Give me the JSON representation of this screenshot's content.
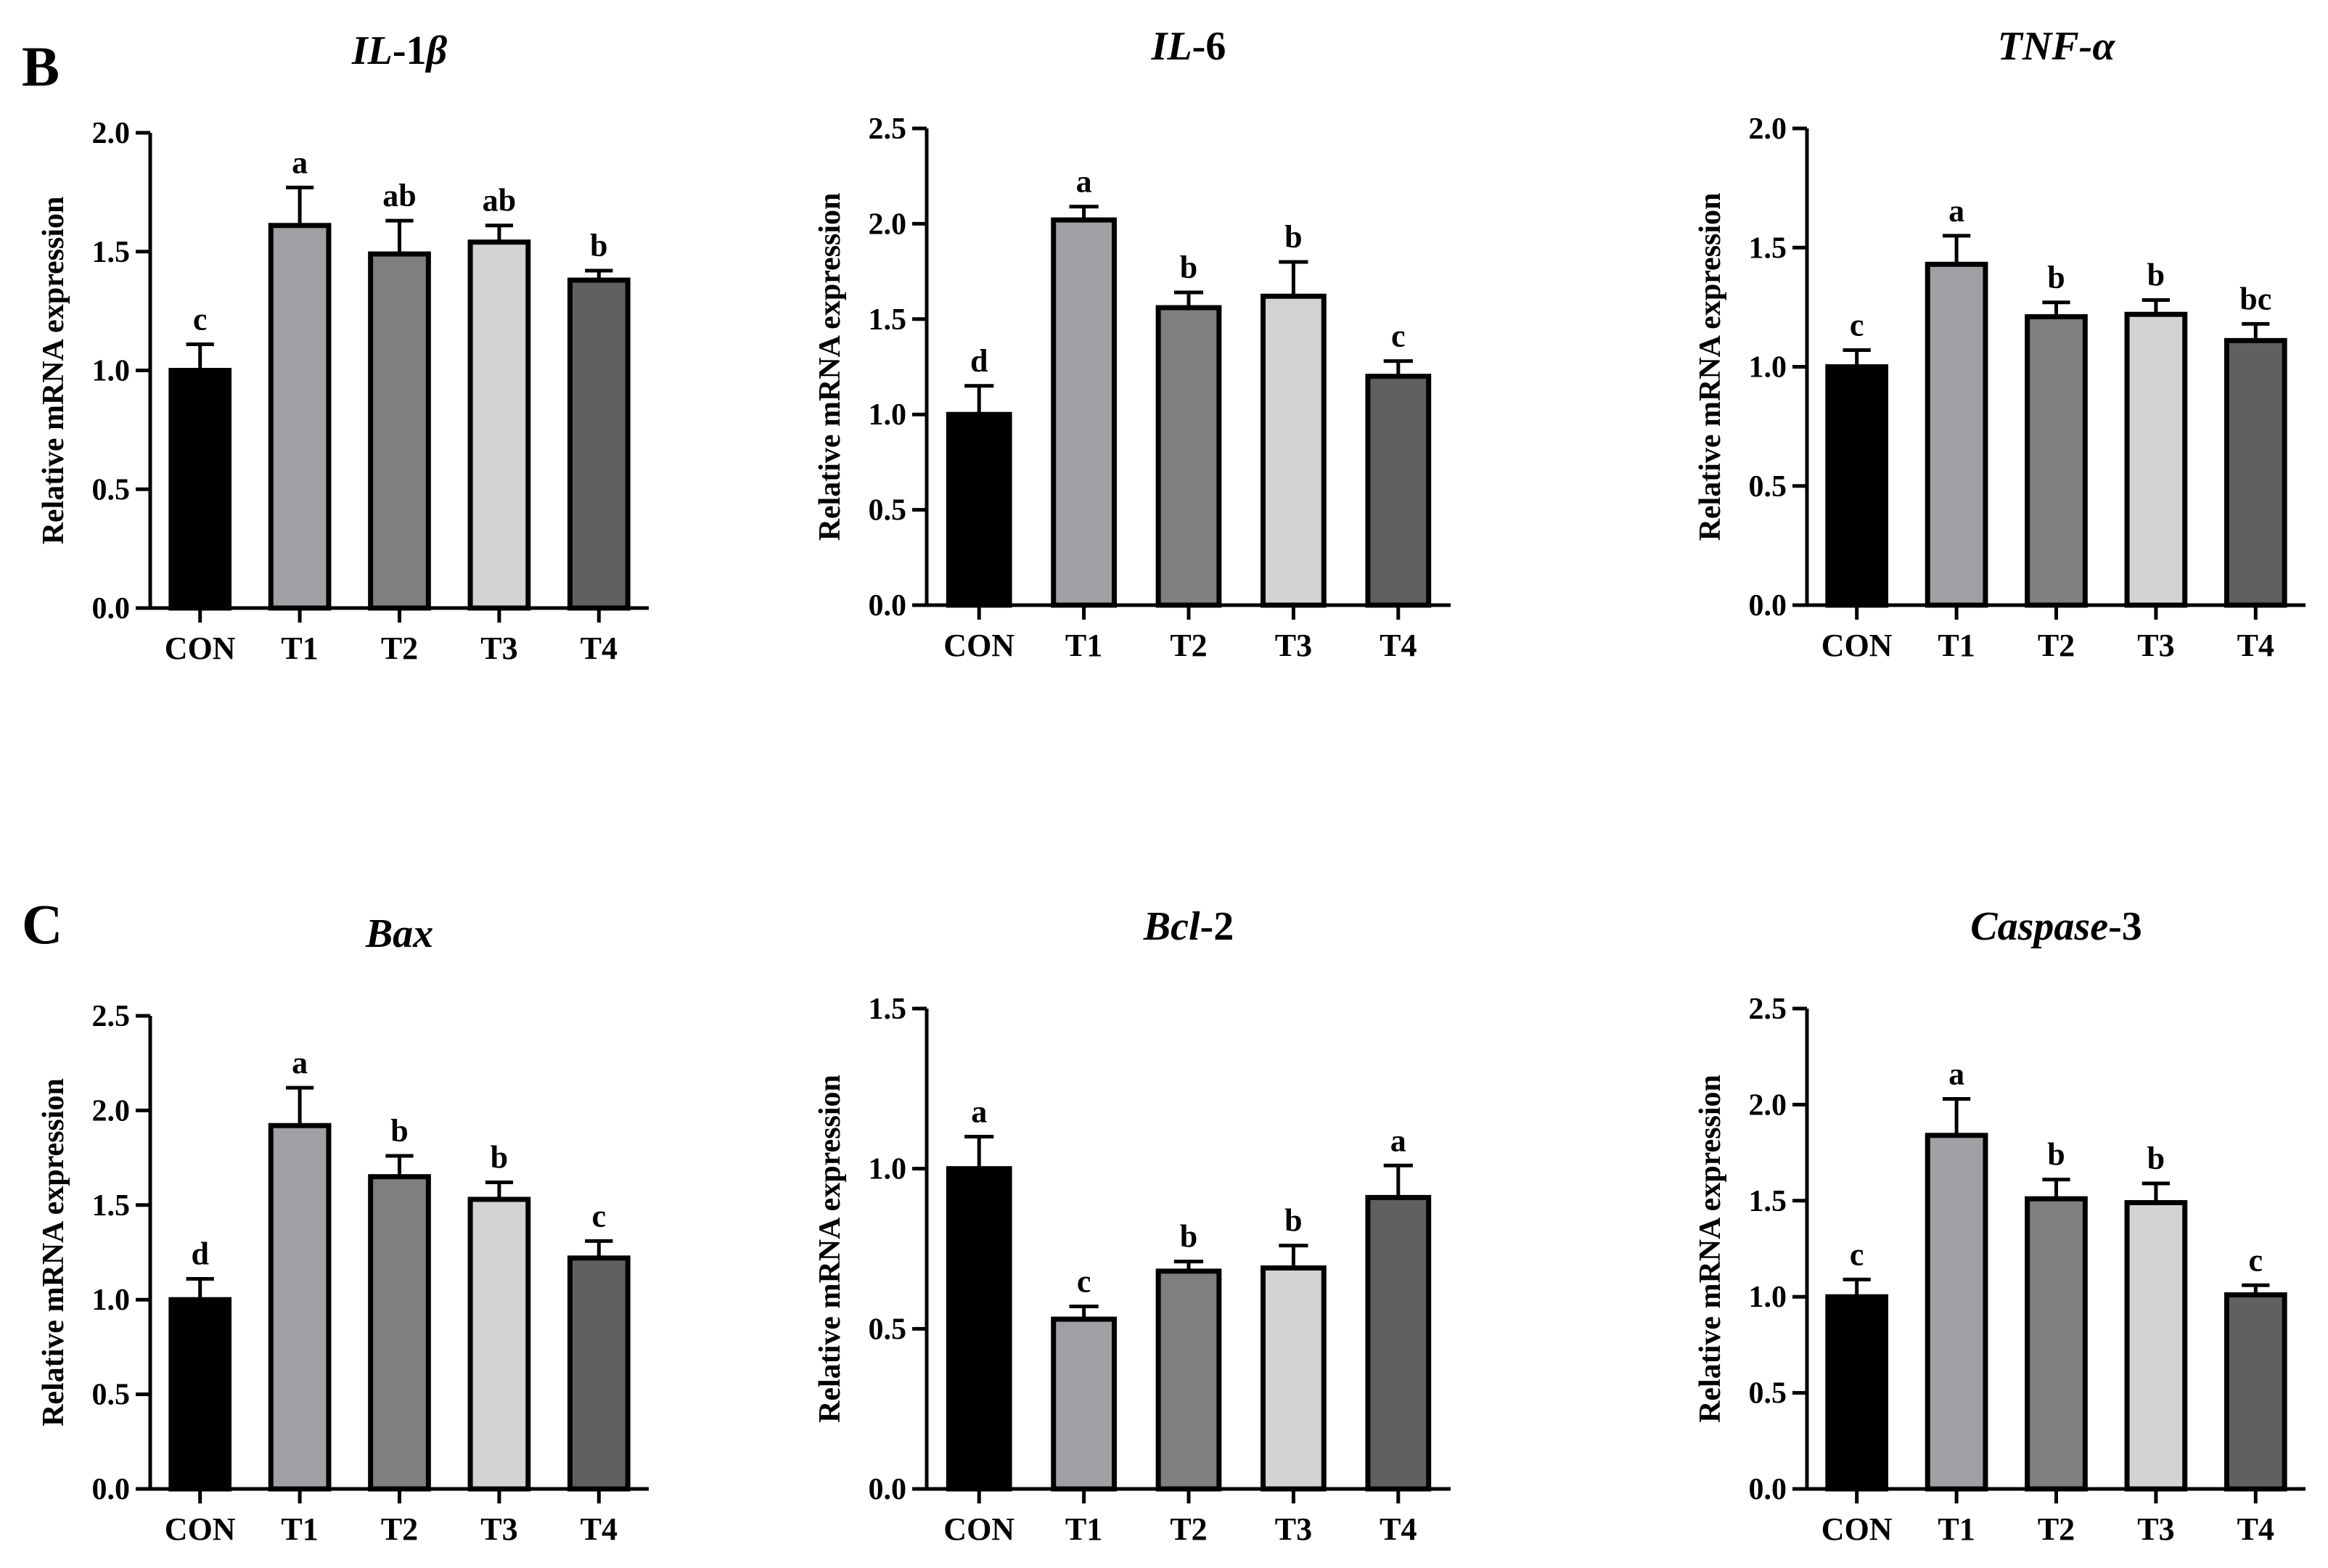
{
  "figure": {
    "panels": [
      {
        "letter": "B"
      },
      {
        "letter": "C"
      }
    ]
  },
  "chart_data": [
    {
      "type": "bar",
      "title": "IL-1β",
      "title_parts": [
        {
          "text": "IL",
          "italic": true
        },
        {
          "text": "-1",
          "italic": false
        },
        {
          "text": "β",
          "italic": true
        }
      ],
      "categories": [
        "CON",
        "T1",
        "T2",
        "T3",
        "T4"
      ],
      "values": [
        1.0,
        1.61,
        1.49,
        1.54,
        1.38
      ],
      "errors": [
        0.11,
        0.16,
        0.14,
        0.07,
        0.04
      ],
      "significance": [
        "c",
        "a",
        "ab",
        "ab",
        "b"
      ],
      "colors": [
        "#000000",
        "#a0a0a4",
        "#7f7f7f",
        "#d3d3d3",
        "#606060"
      ],
      "xlabel": "",
      "ylabel": "Relative mRNA expression",
      "ylim": [
        0,
        2.0
      ],
      "yticks": [
        "0.0",
        "0.5",
        "1.0",
        "1.5",
        "2.0"
      ]
    },
    {
      "type": "bar",
      "title": "IL-6",
      "title_parts": [
        {
          "text": "IL",
          "italic": true
        },
        {
          "text": "-6",
          "italic": false
        }
      ],
      "categories": [
        "CON",
        "T1",
        "T2",
        "T3",
        "T4"
      ],
      "values": [
        1.0,
        2.02,
        1.56,
        1.62,
        1.2
      ],
      "errors": [
        0.15,
        0.07,
        0.08,
        0.18,
        0.08
      ],
      "significance": [
        "d",
        "a",
        "b",
        "b",
        "c"
      ],
      "colors": [
        "#000000",
        "#a0a0a4",
        "#7f7f7f",
        "#d3d3d3",
        "#606060"
      ],
      "xlabel": "",
      "ylabel": "Relative mRNA expression",
      "ylim": [
        0,
        2.5
      ],
      "yticks": [
        "0.0",
        "0.5",
        "1.0",
        "1.5",
        "2.0",
        "2.5"
      ]
    },
    {
      "type": "bar",
      "title": "TNF-α",
      "title_parts": [
        {
          "text": "TNF-α",
          "italic": true
        }
      ],
      "categories": [
        "CON",
        "T1",
        "T2",
        "T3",
        "T4"
      ],
      "values": [
        1.0,
        1.43,
        1.21,
        1.22,
        1.11
      ],
      "errors": [
        0.07,
        0.12,
        0.06,
        0.06,
        0.07
      ],
      "significance": [
        "c",
        "a",
        "b",
        "b",
        "bc"
      ],
      "colors": [
        "#000000",
        "#a0a0a4",
        "#7f7f7f",
        "#d3d3d3",
        "#606060"
      ],
      "xlabel": "",
      "ylabel": "Relative mRNA expression",
      "ylim": [
        0,
        2.0
      ],
      "yticks": [
        "0.0",
        "0.5",
        "1.0",
        "1.5",
        "2.0"
      ]
    },
    {
      "type": "bar",
      "title": "Bax",
      "title_parts": [
        {
          "text": "Bax",
          "italic": true
        }
      ],
      "categories": [
        "CON",
        "T1",
        "T2",
        "T3",
        "T4"
      ],
      "values": [
        1.0,
        1.92,
        1.65,
        1.53,
        1.22
      ],
      "errors": [
        0.11,
        0.2,
        0.11,
        0.09,
        0.09
      ],
      "significance": [
        "d",
        "a",
        "b",
        "b",
        "c"
      ],
      "colors": [
        "#000000",
        "#a0a0a4",
        "#7f7f7f",
        "#d3d3d3",
        "#606060"
      ],
      "xlabel": "",
      "ylabel": "Relative mRNA expression",
      "ylim": [
        0,
        2.5
      ],
      "yticks": [
        "0.0",
        "0.5",
        "1.0",
        "1.5",
        "2.0",
        "2.5"
      ]
    },
    {
      "type": "bar",
      "title": "Bcl-2",
      "title_parts": [
        {
          "text": "Bcl",
          "italic": true
        },
        {
          "text": "-2",
          "italic": false
        }
      ],
      "categories": [
        "CON",
        "T1",
        "T2",
        "T3",
        "T4"
      ],
      "values": [
        1.0,
        0.53,
        0.68,
        0.69,
        0.91
      ],
      "errors": [
        0.1,
        0.04,
        0.03,
        0.07,
        0.1
      ],
      "significance": [
        "a",
        "c",
        "b",
        "b",
        "a"
      ],
      "colors": [
        "#000000",
        "#a0a0a4",
        "#7f7f7f",
        "#d3d3d3",
        "#606060"
      ],
      "xlabel": "",
      "ylabel": "Relative mRNA expression",
      "ylim": [
        0,
        1.5
      ],
      "yticks": [
        "0.0",
        "0.5",
        "1.0",
        "1.5"
      ]
    },
    {
      "type": "bar",
      "title": "Caspase-3",
      "title_parts": [
        {
          "text": "Caspase",
          "italic": true
        },
        {
          "text": "-3",
          "italic": false
        }
      ],
      "categories": [
        "CON",
        "T1",
        "T2",
        "T3",
        "T4"
      ],
      "values": [
        1.0,
        1.84,
        1.51,
        1.49,
        1.01
      ],
      "errors": [
        0.09,
        0.19,
        0.1,
        0.1,
        0.05
      ],
      "significance": [
        "c",
        "a",
        "b",
        "b",
        "c"
      ],
      "colors": [
        "#000000",
        "#a0a0a4",
        "#7f7f7f",
        "#d3d3d3",
        "#606060"
      ],
      "xlabel": "",
      "ylabel": "Relative mRNA expression",
      "ylim": [
        0,
        2.5
      ],
      "yticks": [
        "0.0",
        "0.5",
        "1.0",
        "1.5",
        "2.0",
        "2.5"
      ]
    }
  ]
}
